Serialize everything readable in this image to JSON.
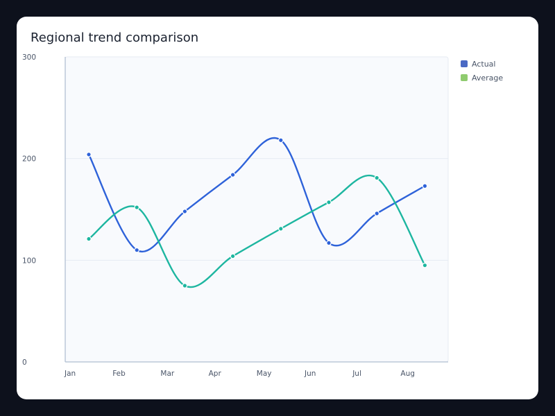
{
  "chart_data": {
    "type": "line",
    "title": "Regional trend comparison",
    "xlabel": "",
    "ylabel": "",
    "categories": [
      "Jan",
      "Feb",
      "Mar",
      "Apr",
      "May",
      "Jun",
      "Jul",
      "Aug"
    ],
    "ylim": [
      0,
      300
    ],
    "yticks": [
      0,
      100,
      200,
      300
    ],
    "grid": true,
    "legend_position": "right",
    "series": [
      {
        "name": "Actual",
        "color": "#2e62d9",
        "legend_color": "#4a69c4",
        "values": [
          204,
          110,
          148,
          184,
          218,
          117,
          146,
          173
        ]
      },
      {
        "name": "Average",
        "color": "#1db6a0",
        "legend_color": "#8fcb6f",
        "values": [
          121,
          152,
          75,
          104,
          131,
          157,
          181,
          95
        ]
      }
    ]
  },
  "colors": {
    "page_background": "#0d111c",
    "card_background": "#ffffff",
    "plot_background": "#f8fafd",
    "grid": "#e6ebf2",
    "axis": "#bcc8d8"
  }
}
